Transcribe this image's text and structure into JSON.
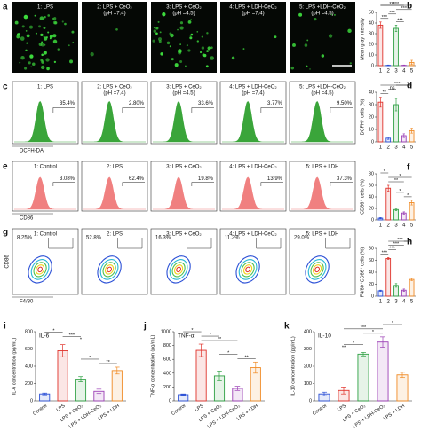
{
  "panels": [
    {
      "letter": "a",
      "labels": [
        [
          "1: LPS"
        ],
        [
          "2: LPS + CeO₂",
          "(pH =7.4)"
        ],
        [
          "3: LPS + CeO₂",
          "(pH =4.5)"
        ],
        [
          "4: LPS + LDH-CeO₂",
          "(pH =7.4)"
        ],
        [
          "5: LPS +LDH-CeO₂",
          "(pH =4.5)"
        ]
      ]
    },
    {
      "letter": "c",
      "labels": [
        [
          "1: LPS"
        ],
        [
          "2: LPS + CeO₂",
          "(pH =7.4)"
        ],
        [
          "3: LPS + CeO₂",
          "(pH =4.5)"
        ],
        [
          "4: LPS + LDH-CeO₂",
          "(pH =7.4)"
        ],
        [
          "5: LPS +LDH-CeO₂",
          "(pH =4.5)"
        ]
      ],
      "percents": [
        "35.4%",
        "2.80%",
        "33.6%",
        "3.77%",
        "9.50%"
      ],
      "xlabel": "DCFH-DA"
    },
    {
      "letter": "e",
      "labels": [
        [
          "1: Control"
        ],
        [
          "2: LPS"
        ],
        [
          "3: LPS + CeO₂"
        ],
        [
          "4: LPS + LDH-CeO₂"
        ],
        [
          "5: LPS + LDH"
        ]
      ],
      "percents": [
        "3.08%",
        "62.4%",
        "19.8%",
        "13.9%",
        "37.3%"
      ],
      "xlabel": "CD86"
    },
    {
      "letter": "g",
      "labels": [
        [
          "1: Control"
        ],
        [
          "2: LPS"
        ],
        [
          "3: LPS + CeO₂"
        ],
        [
          "4: LPS + LDH-CeO₂"
        ],
        [
          "5: LPS + LDH"
        ]
      ],
      "percents": [
        "8.25%",
        "52.8%",
        "16.3%",
        "11.2%",
        "29.0%"
      ],
      "xlabel": "F4/80",
      "ylabel": "CD86"
    }
  ],
  "chart_data": [
    {
      "type": "bar",
      "letter": "b",
      "ylabel": "Mean gray intensity",
      "categories": [
        "1",
        "2",
        "3",
        "4",
        "5"
      ],
      "values": [
        38,
        0.3,
        35,
        0.3,
        3
      ],
      "errors": [
        3,
        0.3,
        3,
        0.3,
        2
      ],
      "colors": [
        "#e0322b",
        "#2a4fd6",
        "#2ea043",
        "#9b3fb5",
        "#f08a24"
      ],
      "ylim": [
        0,
        50
      ],
      "yticks": [
        0,
        10,
        20,
        30,
        40,
        50
      ],
      "significance": [
        "***",
        "***",
        "***",
        "***",
        "***",
        "***"
      ]
    },
    {
      "type": "bar",
      "letter": "d",
      "ylabel": "DCFH⁺ cells (%)",
      "categories": [
        "1",
        "2",
        "3",
        "4",
        "5"
      ],
      "values": [
        32,
        3,
        30,
        5,
        9
      ],
      "errors": [
        4,
        1,
        5,
        1.5,
        2
      ],
      "colors": [
        "#e0322b",
        "#2a4fd6",
        "#2ea043",
        "#9b3fb5",
        "#f08a24"
      ],
      "ylim": [
        0,
        40
      ],
      "yticks": [
        0,
        10,
        20,
        30,
        40
      ],
      "significance": [
        "**",
        "ns",
        "**",
        "*",
        "**"
      ]
    },
    {
      "type": "bar",
      "letter": "f",
      "ylabel": "CD86⁺ cells (%)",
      "categories": [
        "1",
        "2",
        "3",
        "4",
        "5"
      ],
      "values": [
        3,
        55,
        18,
        12,
        30
      ],
      "errors": [
        1,
        5,
        2,
        2,
        4
      ],
      "colors": [
        "#2a4fd6",
        "#e0322b",
        "#2ea043",
        "#9b3fb5",
        "#f08a24"
      ],
      "ylim": [
        0,
        80
      ],
      "yticks": [
        0,
        20,
        40,
        60,
        80
      ],
      "significance": [
        "*",
        "*",
        "**",
        "*",
        "*"
      ]
    },
    {
      "type": "bar",
      "letter": "h",
      "ylabel": "F4/80⁺CD86⁺ cells (%)",
      "categories": [
        "1",
        "2",
        "3",
        "4",
        "5"
      ],
      "values": [
        9,
        63,
        18,
        10,
        28
      ],
      "errors": [
        1,
        1.5,
        3,
        2,
        2
      ],
      "colors": [
        "#2a4fd6",
        "#e0322b",
        "#2ea043",
        "#9b3fb5",
        "#f08a24"
      ],
      "ylim": [
        0,
        80
      ],
      "yticks": [
        0,
        20,
        40,
        60,
        80
      ],
      "significance": [
        "***",
        "***",
        "***",
        "*",
        "***"
      ]
    },
    {
      "type": "bar",
      "letter": "i",
      "inner_label": "IL-6",
      "ylabel": "IL-6 concentration (pg/mL)",
      "categories": [
        "Control",
        "LPS",
        "LPS + CeO₂",
        "LPS + LDH-CeO₂",
        "LPS + LDH"
      ],
      "values": [
        80,
        580,
        250,
        110,
        350
      ],
      "errors": [
        10,
        70,
        30,
        25,
        40
      ],
      "colors": [
        "#2a4fd6",
        "#e0322b",
        "#2ea043",
        "#9b3fb5",
        "#f08a24"
      ],
      "ylim": [
        0,
        800
      ],
      "yticks": [
        0,
        200,
        400,
        600,
        800
      ],
      "significance": [
        "**",
        "*",
        "*",
        "***",
        "*"
      ]
    },
    {
      "type": "bar",
      "letter": "j",
      "inner_label": "TNF-α",
      "ylabel": "TNF-α concentration (pg/mL)",
      "categories": [
        "Control",
        "LPS",
        "LPS + CeO₂",
        "LPS + LDH-CeO₂",
        "LPS + LDH"
      ],
      "values": [
        90,
        730,
        360,
        180,
        480
      ],
      "errors": [
        10,
        90,
        70,
        30,
        80
      ],
      "colors": [
        "#2a4fd6",
        "#e0322b",
        "#2ea043",
        "#9b3fb5",
        "#f08a24"
      ],
      "ylim": [
        0,
        1000
      ],
      "yticks": [
        0,
        200,
        400,
        600,
        800,
        1000
      ],
      "significance": [
        "**",
        "*",
        "**",
        "*",
        "*"
      ]
    },
    {
      "type": "bar",
      "letter": "k",
      "inner_label": "IL-10",
      "ylabel": "IL-10 concentration (pg/mL)",
      "categories": [
        "Control",
        "LPS",
        "LPS + CeO₂",
        "LPS + LDH-CeO₂",
        "LPS + LDH"
      ],
      "values": [
        40,
        60,
        270,
        340,
        150
      ],
      "errors": [
        10,
        20,
        10,
        30,
        15
      ],
      "colors": [
        "#2a4fd6",
        "#e0322b",
        "#2ea043",
        "#9b3fb5",
        "#f08a24"
      ],
      "ylim": [
        0,
        400
      ],
      "yticks": [
        0,
        100,
        200,
        300,
        400
      ],
      "significance": [
        "**",
        "*",
        "*",
        "***",
        "*"
      ]
    }
  ]
}
